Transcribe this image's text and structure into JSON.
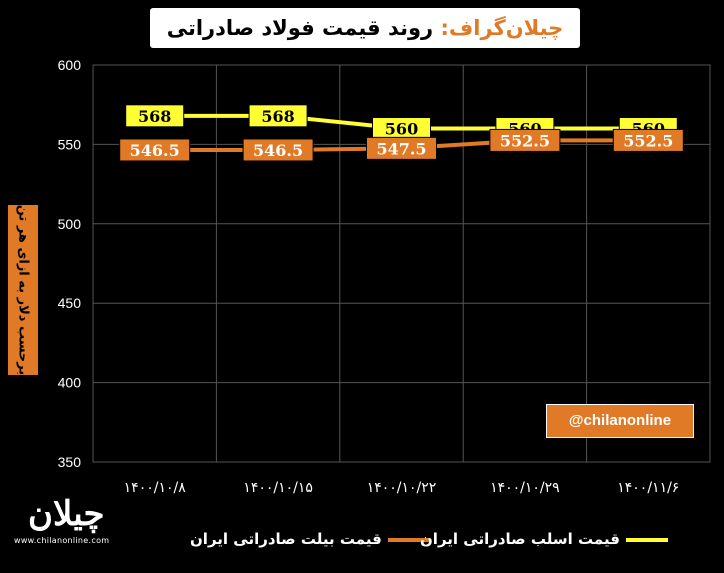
{
  "header": {
    "brand": "چیلان‌گراف:",
    "title": "روند قیمت فولاد صادراتی ایران"
  },
  "watermark": {
    "handle": "@chilanonline",
    "logo_text": "چیلان",
    "logo_url": "www.chilanonline.com"
  },
  "colors": {
    "background": "#000000",
    "series_billet": "#e07a26",
    "series_slab": "#ffff33",
    "label_box_slab": "#ffff33",
    "label_box_billet": "#e07a26"
  },
  "chart_data": {
    "type": "line",
    "title": "روند قیمت فولاد صادراتی ایران",
    "ylabel": "برحسب دلار به ازای هر تن",
    "xlabel": "",
    "categories": [
      "۱۴۰۰/۱۰/۸",
      "۱۴۰۰/۱۰/۱۵",
      "۱۴۰۰/۱۰/۲۲",
      "۱۴۰۰/۱۰/۲۹",
      "۱۴۰۰/۱۱/۶"
    ],
    "ylim": [
      350,
      600
    ],
    "yticks": [
      350,
      400,
      450,
      500,
      550,
      600
    ],
    "grid": true,
    "legend_position": "bottom",
    "series": [
      {
        "name": "قیمت اسلب صادراتی ایران",
        "values": [
          568,
          568,
          560,
          560,
          560
        ],
        "labels": [
          "568",
          "568",
          "560",
          "560",
          "560"
        ]
      },
      {
        "name": "قیمت بیلت صادراتی ایران",
        "values": [
          546.5,
          546.5,
          547.5,
          552.5,
          552.5
        ],
        "labels": [
          "546.5",
          "546.5",
          "547.5",
          "552.5",
          "552.5"
        ]
      }
    ]
  }
}
